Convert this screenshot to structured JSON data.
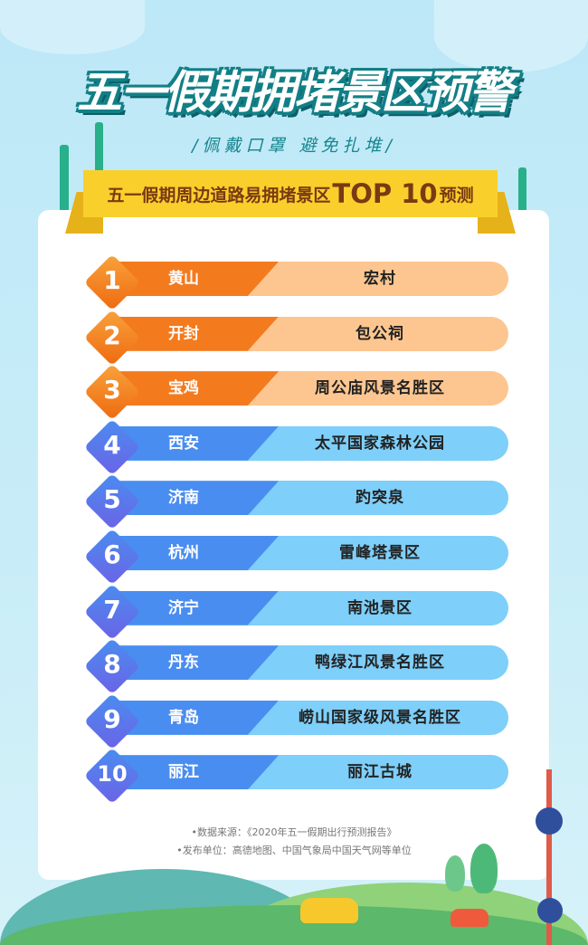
{
  "title": "五一假期拥堵景区预警",
  "subtitle": "/佩戴口罩  避免扎堆/",
  "ribbon": {
    "prefix": "五一假期周边道路易拥堵景区",
    "top": "TOP 10",
    "suffix": "预测"
  },
  "colors": {
    "orange_dark": "#f47a1e",
    "orange_light": "#fdc690",
    "blue_dark": "#4a8df0",
    "blue_light": "#7ecff9",
    "badge_blue": "#6b63e6"
  },
  "rows": [
    {
      "rank": "1",
      "city": "黄山",
      "spot": "宏村"
    },
    {
      "rank": "2",
      "city": "开封",
      "spot": "包公祠"
    },
    {
      "rank": "3",
      "city": "宝鸡",
      "spot": "周公庙风景名胜区"
    },
    {
      "rank": "4",
      "city": "西安",
      "spot": "太平国家森林公园"
    },
    {
      "rank": "5",
      "city": "济南",
      "spot": "趵突泉"
    },
    {
      "rank": "6",
      "city": "杭州",
      "spot": "雷峰塔景区"
    },
    {
      "rank": "7",
      "city": "济宁",
      "spot": "南池景区"
    },
    {
      "rank": "8",
      "city": "丹东",
      "spot": "鸭绿江风景名胜区"
    },
    {
      "rank": "9",
      "city": "青岛",
      "spot": "崂山国家级风景名胜区"
    },
    {
      "rank": "10",
      "city": "丽江",
      "spot": "丽江古城"
    }
  ],
  "footer": {
    "source": "•数据来源：《2020年五一假期出行预测报告》",
    "publisher": "•发布单位：高德地图、中国气象局中国天气网等单位"
  }
}
